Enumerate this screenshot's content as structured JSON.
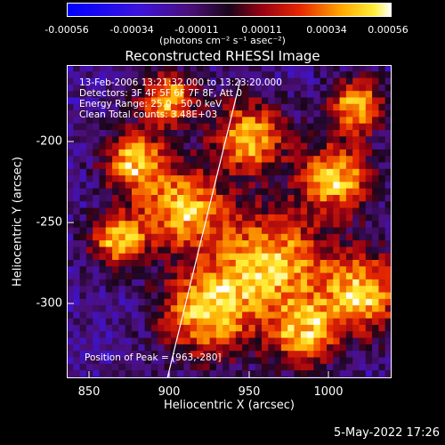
{
  "colorbar": {
    "ticks": [
      "-0.00056",
      "-0.00034",
      "-0.00011",
      "0.00011",
      "0.00034",
      "0.00056"
    ],
    "unit": "(photons cm⁻² s⁻¹ asec⁻²)"
  },
  "title": "Reconstructed RHESSI Image",
  "annotations": {
    "time": "13-Feb-2006 13:21:32.000 to 13:23:20.000",
    "detectors": "Detectors: 3F 4F 5F 6F 7F 8F, Att 0",
    "energy": "Energy Range: 25.0 - 50.0 keV",
    "clean": "Clean    Total counts: 3.48E+03",
    "peak": "Position of Peak = [963,-280]"
  },
  "axes": {
    "xlabel": "Heliocentric X (arcsec)",
    "ylabel": "Heliocentric Y (arcsec)",
    "xticks": [
      "850",
      "900",
      "950",
      "1000"
    ],
    "yticks": [
      "-200",
      "-250",
      "-300"
    ]
  },
  "date": "5-May-2022 17:26"
}
